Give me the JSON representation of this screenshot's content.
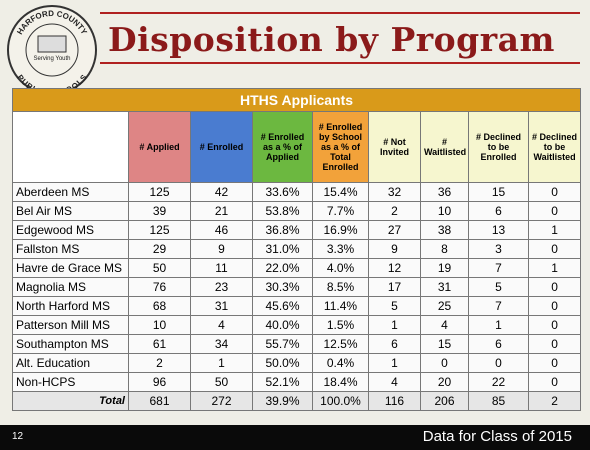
{
  "logo": {
    "top_text": "HARFORD COUNTY",
    "motto": "Serving Youth",
    "bottom_text": "PUBLIC SCHOOLS"
  },
  "header": {
    "title": "Disposition by Program"
  },
  "table": {
    "title": "HTHS Applicants",
    "columns": [
      "",
      "# Applied",
      "# Enrolled",
      "# Enrolled as a % of Applied",
      "# Enrolled by School as a % of Total Enrolled",
      "# Not Invited",
      "# Waitlisted",
      "# Declined to be Enrolled",
      "# Declined to be Waitlisted"
    ],
    "rows": [
      [
        "Aberdeen MS",
        "125",
        "42",
        "33.6%",
        "15.4%",
        "32",
        "36",
        "15",
        "0"
      ],
      [
        "Bel Air MS",
        "39",
        "21",
        "53.8%",
        "7.7%",
        "2",
        "10",
        "6",
        "0"
      ],
      [
        "Edgewood MS",
        "125",
        "46",
        "36.8%",
        "16.9%",
        "27",
        "38",
        "13",
        "1"
      ],
      [
        "Fallston MS",
        "29",
        "9",
        "31.0%",
        "3.3%",
        "9",
        "8",
        "3",
        "0"
      ],
      [
        "Havre de Grace MS",
        "50",
        "11",
        "22.0%",
        "4.0%",
        "12",
        "19",
        "7",
        "1"
      ],
      [
        "Magnolia MS",
        "76",
        "23",
        "30.3%",
        "8.5%",
        "17",
        "31",
        "5",
        "0"
      ],
      [
        "North Harford MS",
        "68",
        "31",
        "45.6%",
        "11.4%",
        "5",
        "25",
        "7",
        "0"
      ],
      [
        "Patterson Mill MS",
        "10",
        "4",
        "40.0%",
        "1.5%",
        "1",
        "4",
        "1",
        "0"
      ],
      [
        "Southampton MS",
        "61",
        "34",
        "55.7%",
        "12.5%",
        "6",
        "15",
        "6",
        "0"
      ],
      [
        "Alt. Education",
        "2",
        "1",
        "50.0%",
        "0.4%",
        "1",
        "0",
        "0",
        "0"
      ],
      [
        "Non-HCPS",
        "96",
        "50",
        "52.1%",
        "18.4%",
        "4",
        "20",
        "22",
        "0"
      ],
      [
        "Total",
        "681",
        "272",
        "39.9%",
        "100.0%",
        "116",
        "206",
        "85",
        "2"
      ]
    ]
  },
  "footer": {
    "page_number": "12",
    "caption": "Data for Class of 2015"
  }
}
